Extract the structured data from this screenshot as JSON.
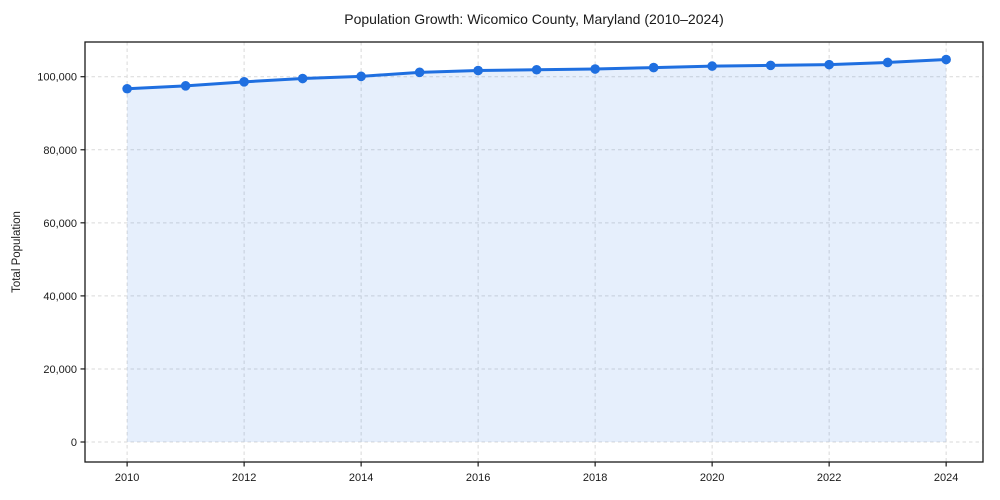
{
  "chart_data": {
    "type": "line",
    "title": "Population Growth: Wicomico County, Maryland (2010–2024)",
    "xlabel": "",
    "ylabel": "Total Population",
    "x": [
      2010,
      2011,
      2012,
      2013,
      2014,
      2015,
      2016,
      2017,
      2018,
      2019,
      2020,
      2021,
      2022,
      2023,
      2024
    ],
    "series": [
      {
        "name": "Total Population",
        "values": [
          96700,
          97500,
          98600,
          99500,
          100100,
          101200,
          101700,
          101900,
          102100,
          102500,
          102900,
          103100,
          103300,
          103900,
          104700
        ],
        "color": "#1f6fe0",
        "marker": "circle",
        "line_width": 3,
        "fill_to_zero": true,
        "fill_opacity": 0.11
      }
    ],
    "x_ticks": [
      2010,
      2012,
      2014,
      2016,
      2018,
      2020,
      2022,
      2024
    ],
    "x_tick_labels": [
      "2010",
      "2012",
      "2014",
      "2016",
      "2018",
      "2020",
      "2022",
      "2024"
    ],
    "y_ticks": [
      0,
      20000,
      40000,
      60000,
      80000,
      100000
    ],
    "y_tick_labels": [
      "0",
      "20,000",
      "40,000",
      "60,000",
      "80,000",
      "100,000"
    ],
    "xlim": [
      2009.28,
      2024.63
    ],
    "ylim": [
      -5474,
      109500
    ],
    "grid": true,
    "grid_color": "#d9d9d9",
    "grid_style": "dashed",
    "legend": "none",
    "axis_color": "#1a1a1a",
    "plot_background": "#ffffff",
    "figure_background": "#ffffff"
  }
}
